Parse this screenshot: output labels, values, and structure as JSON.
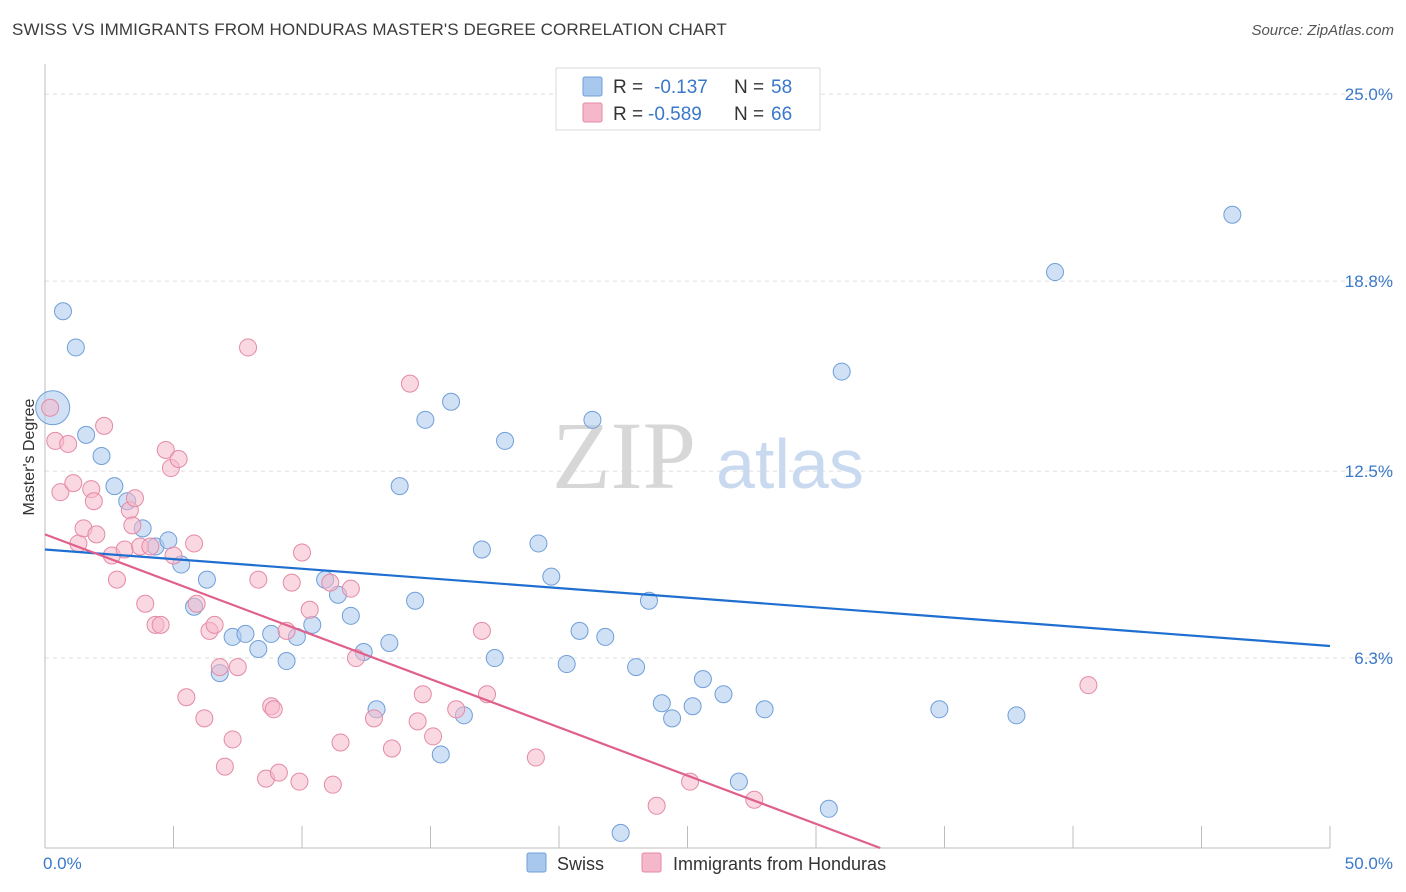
{
  "header": {
    "title": "SWISS VS IMMIGRANTS FROM HONDURAS MASTER'S DEGREE CORRELATION CHART",
    "source": "Source: ZipAtlas.com"
  },
  "watermark": {
    "zip": "ZIP",
    "atlas": "atlas"
  },
  "legend": {
    "rows": [
      {
        "r_label": "R =",
        "r_value": "-0.137",
        "n_label": "N =",
        "n_value": "58"
      },
      {
        "r_label": "R =",
        "r_value": "-0.589",
        "n_label": "N =",
        "n_value": "66"
      }
    ]
  },
  "bottom_legend": {
    "swiss": "Swiss",
    "honduras": "Immigrants from Honduras"
  },
  "colors": {
    "swiss_fill": "#a9c8ee",
    "swiss_stroke": "#6f9fd8",
    "swiss_line": "#1f6fd0",
    "honduras_fill": "#f5b8ca",
    "honduras_stroke": "#e48aa6",
    "honduras_line": "#e0608c",
    "tick_text": "#3a78c9",
    "value_text": "#3a78c9"
  },
  "chart_data": {
    "type": "scatter",
    "ylabel": "Master's Degree",
    "xlim": [
      0,
      50
    ],
    "ylim": [
      0,
      26
    ],
    "x_tick_labels": [
      "0.0%",
      "50.0%"
    ],
    "y_ticks": [
      6.3,
      12.5,
      18.8,
      25.0
    ],
    "y_tick_labels": [
      "6.3%",
      "12.5%",
      "18.8%",
      "25.0%"
    ],
    "grid": true,
    "series": [
      {
        "name": "Swiss",
        "color": "#a9c8ee",
        "trend": {
          "x": [
            0,
            50
          ],
          "y": [
            9.9,
            6.7
          ]
        },
        "points": [
          {
            "x": 0.3,
            "y": 14.6,
            "big": true
          },
          {
            "x": 0.7,
            "y": 17.8
          },
          {
            "x": 1.2,
            "y": 16.6
          },
          {
            "x": 1.6,
            "y": 13.7
          },
          {
            "x": 2.2,
            "y": 13.0
          },
          {
            "x": 2.7,
            "y": 12.0
          },
          {
            "x": 3.2,
            "y": 11.5
          },
          {
            "x": 3.8,
            "y": 10.6
          },
          {
            "x": 4.3,
            "y": 10.0
          },
          {
            "x": 4.8,
            "y": 10.2
          },
          {
            "x": 5.3,
            "y": 9.4
          },
          {
            "x": 5.8,
            "y": 8.0
          },
          {
            "x": 6.3,
            "y": 8.9
          },
          {
            "x": 6.8,
            "y": 5.8
          },
          {
            "x": 7.3,
            "y": 7.0
          },
          {
            "x": 7.8,
            "y": 7.1
          },
          {
            "x": 8.3,
            "y": 6.6
          },
          {
            "x": 8.8,
            "y": 7.1
          },
          {
            "x": 9.4,
            "y": 6.2
          },
          {
            "x": 9.8,
            "y": 7.0
          },
          {
            "x": 10.4,
            "y": 7.4
          },
          {
            "x": 10.9,
            "y": 8.9
          },
          {
            "x": 11.4,
            "y": 8.4
          },
          {
            "x": 11.9,
            "y": 7.7
          },
          {
            "x": 12.4,
            "y": 6.5
          },
          {
            "x": 12.9,
            "y": 4.6
          },
          {
            "x": 13.4,
            "y": 6.8
          },
          {
            "x": 13.8,
            "y": 12.0
          },
          {
            "x": 14.4,
            "y": 8.2
          },
          {
            "x": 14.8,
            "y": 14.2
          },
          {
            "x": 15.4,
            "y": 3.1
          },
          {
            "x": 15.8,
            "y": 14.8
          },
          {
            "x": 16.3,
            "y": 4.4
          },
          {
            "x": 17.0,
            "y": 9.9
          },
          {
            "x": 17.5,
            "y": 6.3
          },
          {
            "x": 17.9,
            "y": 13.5
          },
          {
            "x": 19.2,
            "y": 10.1
          },
          {
            "x": 19.7,
            "y": 9.0
          },
          {
            "x": 20.3,
            "y": 6.1
          },
          {
            "x": 20.8,
            "y": 7.2
          },
          {
            "x": 21.3,
            "y": 14.2
          },
          {
            "x": 21.8,
            "y": 7.0
          },
          {
            "x": 22.4,
            "y": 0.5
          },
          {
            "x": 23.0,
            "y": 6.0
          },
          {
            "x": 23.5,
            "y": 8.2
          },
          {
            "x": 24.0,
            "y": 4.8
          },
          {
            "x": 24.4,
            "y": 4.3
          },
          {
            "x": 25.2,
            "y": 4.7
          },
          {
            "x": 25.6,
            "y": 5.6
          },
          {
            "x": 26.4,
            "y": 5.1
          },
          {
            "x": 27.0,
            "y": 2.2
          },
          {
            "x": 28.0,
            "y": 4.6
          },
          {
            "x": 30.5,
            "y": 1.3
          },
          {
            "x": 31.0,
            "y": 15.8
          },
          {
            "x": 34.8,
            "y": 4.6
          },
          {
            "x": 37.8,
            "y": 4.4
          },
          {
            "x": 39.3,
            "y": 19.1
          },
          {
            "x": 46.2,
            "y": 21.0
          }
        ]
      },
      {
        "name": "Immigrants from Honduras",
        "color": "#f5b8ca",
        "trend": {
          "x": [
            0,
            32.5
          ],
          "y": [
            10.4,
            0
          ]
        },
        "points": [
          {
            "x": 0.2,
            "y": 14.6
          },
          {
            "x": 0.4,
            "y": 13.5
          },
          {
            "x": 0.6,
            "y": 11.8
          },
          {
            "x": 0.9,
            "y": 13.4
          },
          {
            "x": 1.1,
            "y": 12.1
          },
          {
            "x": 1.3,
            "y": 10.1
          },
          {
            "x": 1.5,
            "y": 10.6
          },
          {
            "x": 1.8,
            "y": 11.9
          },
          {
            "x": 1.9,
            "y": 11.5
          },
          {
            "x": 2.0,
            "y": 10.4
          },
          {
            "x": 2.3,
            "y": 14.0
          },
          {
            "x": 2.6,
            "y": 9.7
          },
          {
            "x": 2.8,
            "y": 8.9
          },
          {
            "x": 3.1,
            "y": 9.9
          },
          {
            "x": 3.3,
            "y": 11.2
          },
          {
            "x": 3.5,
            "y": 11.6
          },
          {
            "x": 3.4,
            "y": 10.7
          },
          {
            "x": 3.7,
            "y": 10.0
          },
          {
            "x": 3.9,
            "y": 8.1
          },
          {
            "x": 4.1,
            "y": 10.0
          },
          {
            "x": 4.3,
            "y": 7.4
          },
          {
            "x": 4.5,
            "y": 7.4
          },
          {
            "x": 4.7,
            "y": 13.2
          },
          {
            "x": 4.9,
            "y": 12.6
          },
          {
            "x": 5.0,
            "y": 9.7
          },
          {
            "x": 5.2,
            "y": 12.9
          },
          {
            "x": 5.5,
            "y": 5.0
          },
          {
            "x": 5.8,
            "y": 10.1
          },
          {
            "x": 5.9,
            "y": 8.1
          },
          {
            "x": 6.2,
            "y": 4.3
          },
          {
            "x": 6.4,
            "y": 7.2
          },
          {
            "x": 6.6,
            "y": 7.4
          },
          {
            "x": 6.8,
            "y": 6.0
          },
          {
            "x": 7.0,
            "y": 2.7
          },
          {
            "x": 7.3,
            "y": 3.6
          },
          {
            "x": 7.5,
            "y": 6.0
          },
          {
            "x": 7.9,
            "y": 16.6
          },
          {
            "x": 8.3,
            "y": 8.9
          },
          {
            "x": 8.6,
            "y": 2.3
          },
          {
            "x": 8.8,
            "y": 4.7
          },
          {
            "x": 8.9,
            "y": 4.6
          },
          {
            "x": 9.1,
            "y": 2.5
          },
          {
            "x": 9.4,
            "y": 7.2
          },
          {
            "x": 9.6,
            "y": 8.8
          },
          {
            "x": 9.9,
            "y": 2.2
          },
          {
            "x": 10.0,
            "y": 9.8
          },
          {
            "x": 10.3,
            "y": 7.9
          },
          {
            "x": 11.1,
            "y": 8.8
          },
          {
            "x": 11.2,
            "y": 2.1
          },
          {
            "x": 11.5,
            "y": 3.5
          },
          {
            "x": 11.9,
            "y": 8.6
          },
          {
            "x": 12.1,
            "y": 6.3
          },
          {
            "x": 12.8,
            "y": 4.3
          },
          {
            "x": 13.5,
            "y": 3.3
          },
          {
            "x": 14.2,
            "y": 15.4
          },
          {
            "x": 14.5,
            "y": 4.2
          },
          {
            "x": 14.7,
            "y": 5.1
          },
          {
            "x": 15.1,
            "y": 3.7
          },
          {
            "x": 16.0,
            "y": 4.6
          },
          {
            "x": 17.0,
            "y": 7.2
          },
          {
            "x": 17.2,
            "y": 5.1
          },
          {
            "x": 19.1,
            "y": 3.0
          },
          {
            "x": 23.8,
            "y": 1.4
          },
          {
            "x": 25.1,
            "y": 2.2
          },
          {
            "x": 27.6,
            "y": 1.6
          },
          {
            "x": 40.6,
            "y": 5.4
          }
        ]
      }
    ]
  }
}
